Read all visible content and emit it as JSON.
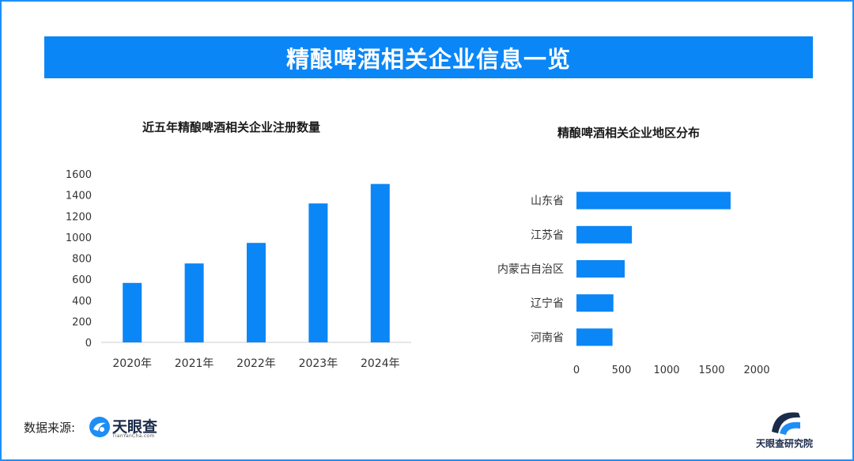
{
  "header": {
    "title": "精酿啤酒相关企业信息一览"
  },
  "left_chart_title": "近五年精酿啤酒相关企业注册数量",
  "right_chart_title": "精酿啤酒相关企业地区分布",
  "footer": {
    "source_label": "数据来源:",
    "logo_text": "天眼查",
    "logo_subtext": "TianYanCha.com",
    "brand_right": "天眼查研究院"
  },
  "colors": {
    "accent": "#0a86f7",
    "bar": "#0a86f7",
    "axis": "#cccccc"
  },
  "chart_data": [
    {
      "type": "bar",
      "title": "近五年精酿啤酒相关企业注册数量",
      "categories": [
        "2020年",
        "2021年",
        "2022年",
        "2023年",
        "2024年"
      ],
      "values": [
        565,
        750,
        945,
        1320,
        1505
      ],
      "ylim": [
        0,
        1600
      ],
      "yticks": [
        0,
        200,
        400,
        600,
        800,
        1000,
        1200,
        1400,
        1600
      ],
      "grid": false
    },
    {
      "type": "bar",
      "orientation": "horizontal",
      "title": "精酿啤酒相关企业地区分布",
      "categories": [
        "山东省",
        "江苏省",
        "内蒙古自治区",
        "辽宁省",
        "河南省"
      ],
      "values": [
        1710,
        615,
        535,
        410,
        400
      ],
      "xlim": [
        0,
        2000
      ],
      "xticks": [
        0,
        500,
        1000,
        1500,
        2000
      ],
      "grid": false
    }
  ]
}
